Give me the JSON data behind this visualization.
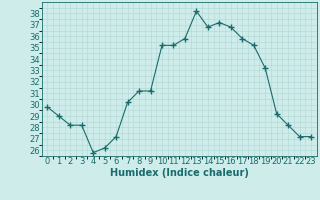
{
  "x": [
    0,
    1,
    2,
    3,
    4,
    5,
    6,
    7,
    8,
    9,
    10,
    11,
    12,
    13,
    14,
    15,
    16,
    17,
    18,
    19,
    20,
    21,
    22,
    23
  ],
  "y": [
    29.8,
    29.0,
    28.2,
    28.2,
    25.8,
    26.2,
    27.2,
    30.2,
    31.2,
    31.2,
    35.2,
    35.2,
    35.8,
    38.2,
    36.8,
    37.2,
    36.8,
    35.8,
    35.2,
    33.2,
    29.2,
    28.2,
    27.2,
    27.2
  ],
  "line_color": "#1a6b6b",
  "marker": "+",
  "marker_size": 4,
  "marker_linewidth": 1.0,
  "bg_color": "#ceecea",
  "grid_color_major": "#b0d8d5",
  "grid_color_minor": "#b0d8d5",
  "xlabel": "Humidex (Indice chaleur)",
  "ylim": [
    25.5,
    39.0
  ],
  "xlim": [
    -0.5,
    23.5
  ],
  "yticks": [
    26,
    27,
    28,
    29,
    30,
    31,
    32,
    33,
    34,
    35,
    36,
    37,
    38
  ],
  "xticks": [
    0,
    1,
    2,
    3,
    4,
    5,
    6,
    7,
    8,
    9,
    10,
    11,
    12,
    13,
    14,
    15,
    16,
    17,
    18,
    19,
    20,
    21,
    22,
    23
  ],
  "label_fontsize": 7,
  "tick_fontsize": 6
}
